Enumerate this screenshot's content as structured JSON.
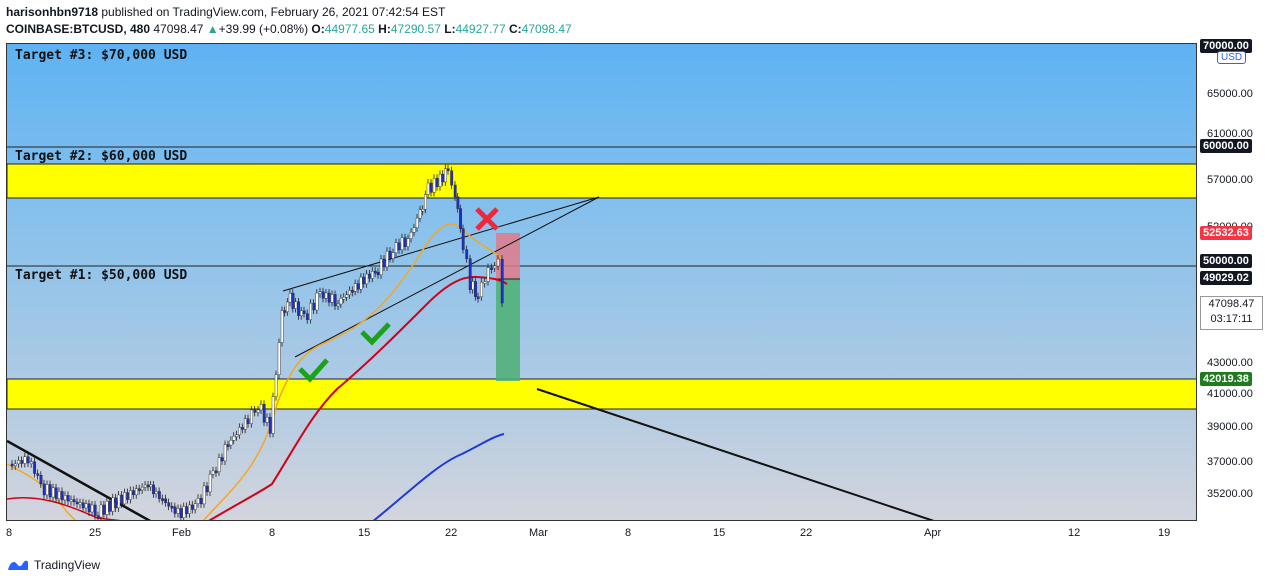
{
  "header": {
    "author": "harisonhbn9718",
    "published_text": "published on TradingView.com, February 26, 2021 07:42:54 EST",
    "symbol": "COINBASE:BTCUSD, 480",
    "last": "47098.47",
    "change": "+39.99 (+0.08%)",
    "open_label": "O:",
    "open": "44977.65",
    "high_label": "H:",
    "high": "47290.57",
    "low_label": "L:",
    "low": "44927.77",
    "close_label": "C:",
    "close": "47098.47"
  },
  "targets": {
    "t3": "Target #3: $70,000 USD",
    "t2": "Target #2: $60,000 USD",
    "t1": "Target #1: $50,000 USD"
  },
  "yaxis": {
    "currency": "USD",
    "ticks": [
      "70000.00",
      "65000.00",
      "61000.00",
      "57000.00",
      "52000.00",
      "43000.00",
      "41000.00",
      "39000.00",
      "37000.00",
      "35200.00"
    ],
    "badges": {
      "target2": "60000.00",
      "stop": "52532.63",
      "target1": "50000.00",
      "entry": "49029.02",
      "take_profit": "42019.38"
    },
    "last_price": "47098.47",
    "countdown": "03:17:11",
    "colors": {
      "stop": "#f23645",
      "entry": "#131722",
      "profit": "#1e7b1e"
    }
  },
  "xaxis": {
    "ticks": [
      "8",
      "25",
      "Feb",
      "8",
      "15",
      "22",
      "Mar",
      "8",
      "15",
      "22",
      "Apr",
      "12",
      "19"
    ]
  },
  "chart_visual": {
    "zone_color": "#ffff00",
    "ema_fast_color": "#f5a623",
    "ema_mid_color": "#d0021b",
    "ema_slow_color": "#1f3bd6",
    "check_color": "#1aa31a",
    "cross_color": "#f0263d"
  },
  "footer": {
    "brand": "TradingView"
  }
}
